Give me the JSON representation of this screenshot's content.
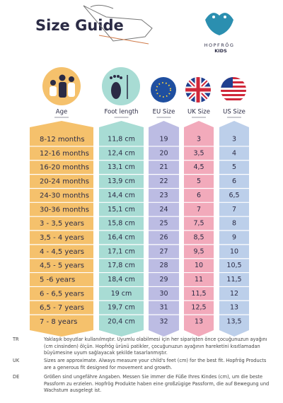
{
  "header": {
    "title": "Size Guide",
    "logo": "HOPFRÖG",
    "logo_sub": "KIDS"
  },
  "table": {
    "columns": [
      "Age",
      "Foot length",
      "EU Size",
      "UK Size",
      "US Size"
    ],
    "rows": [
      [
        "8-12 months",
        "11,8 cm",
        "19",
        "3",
        "3"
      ],
      [
        "12-16 months",
        "12,4 cm",
        "20",
        "3,5",
        "4"
      ],
      [
        "16-20 months",
        "13,1 cm",
        "21",
        "4,5",
        "5"
      ],
      [
        "20-24 months",
        "13,9 cm",
        "22",
        "5",
        "6"
      ],
      [
        "24-30 months",
        "14,4 cm",
        "23",
        "6",
        "6,5"
      ],
      [
        "30-36 months",
        "15,1 cm",
        "24",
        "7",
        "7"
      ],
      [
        "3 - 3,5 years",
        "15,8 cm",
        "25",
        "7,5",
        "8"
      ],
      [
        "3,5 - 4 years",
        "16,4 cm",
        "26",
        "8,5",
        "9"
      ],
      [
        "4 - 4,5 years",
        "17,1 cm",
        "27",
        "9,5",
        "10"
      ],
      [
        "4,5 - 5 years",
        "17,8 cm",
        "28",
        "10",
        "10,5"
      ],
      [
        "5 -6 years",
        "18,4 cm",
        "29",
        "11",
        "11,5"
      ],
      [
        "6 - 6,5 years",
        "19 cm",
        "30",
        "11,5",
        "12"
      ],
      [
        "6,5 - 7 years",
        "19,7 cm",
        "31",
        "12,5",
        "13"
      ],
      [
        "7 - 8 years",
        "20,4 cm",
        "32",
        "13",
        "13,5"
      ]
    ]
  },
  "notes": [
    {
      "code": "TR",
      "text": "Yaklaşık boyutlar kullanılmıştır. Uyumlu olabilmesi için her siparişten önce çocuğunuzun ayağını (cm cinsinden) ölçün. Hopfrög ürünü patikler, çocuğunuzun ayağının hareketini kısıtlamadan büyümesine uyum sağlayacak şekilde tasarlanmıştır."
    },
    {
      "code": "UK",
      "text": "Sizes are approximate. Always measure your child's feet (cm) for the best fit. Hopfrög Products are a generous fit designed for movement and growth."
    },
    {
      "code": "DE",
      "text": "Größen sind ungefähre Angaben. Messen Sie immer die Füße Ihres Kindes (cm), um die beste Passform zu erzielen. Hopfrög Produkte haben eine großzügige Passform, die auf Bewegung und Wachstum ausgelegt ist."
    }
  ]
}
